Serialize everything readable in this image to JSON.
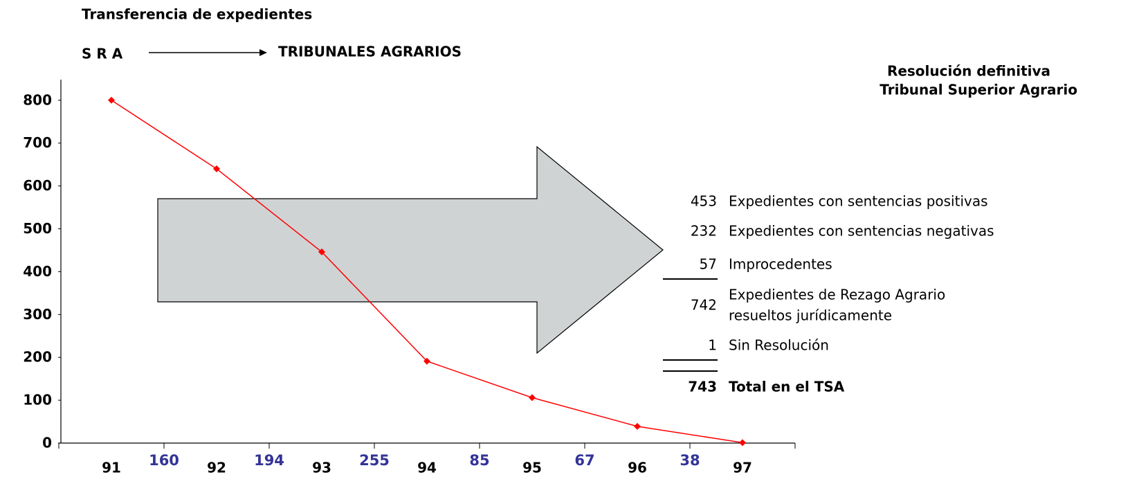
{
  "chart_data": {
    "type": "line",
    "title": "Transferencia de expedientes",
    "from_label": "S R A",
    "to_label": "TRIBUNALES AGRARIOS",
    "side_title": [
      "Resolución definitiva",
      "Tribunal Superior Agrario"
    ],
    "categories": [
      "91",
      "92",
      "93",
      "94",
      "95",
      "96",
      "97"
    ],
    "values": [
      800,
      640,
      446,
      191,
      106,
      39,
      1
    ],
    "color": "#ff0000",
    "transfers": [
      160,
      194,
      255,
      85,
      67,
      38
    ],
    "transfer_color": "#333399",
    "ylim": [
      0,
      850
    ],
    "yticks": [
      0,
      100,
      200,
      300,
      400,
      500,
      600,
      700,
      800
    ],
    "summary": [
      {
        "value": 453,
        "label": "Expedientes con sentencias positivas"
      },
      {
        "value": 232,
        "label": "Expedientes con sentencias negativas"
      },
      {
        "value": 57,
        "label": "Improcedentes"
      },
      {
        "value": 742,
        "label": [
          "Expedientes de Rezago Agrario",
          "resueltos jurídicamente"
        ]
      },
      {
        "value": 1,
        "label": "Sin Resolución"
      }
    ],
    "total": {
      "value": 743,
      "label": "Total en el TSA"
    }
  }
}
